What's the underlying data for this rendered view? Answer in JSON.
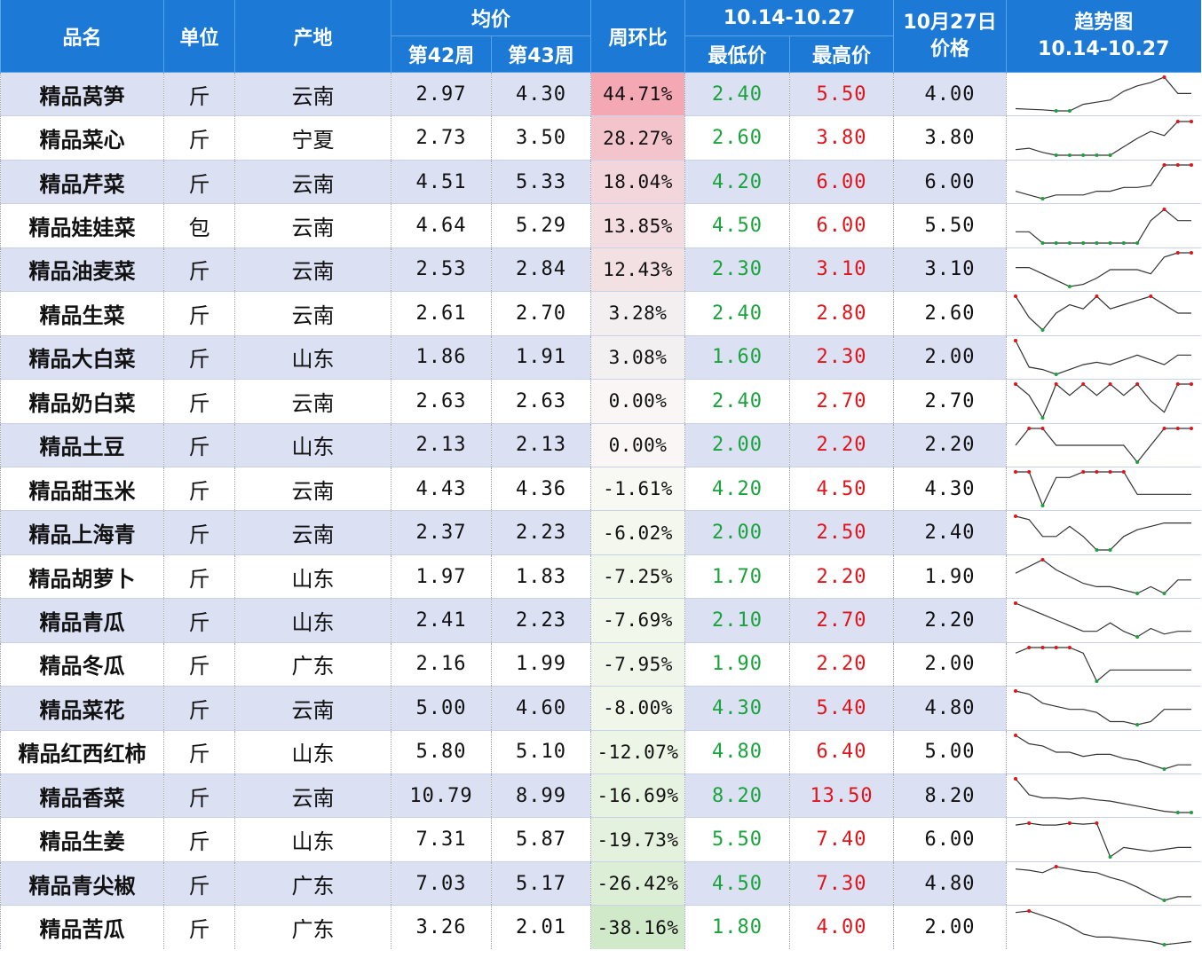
{
  "header": {
    "name": "品名",
    "unit": "单位",
    "origin": "产地",
    "avg": "均价",
    "w42": "第42周",
    "w43": "第43周",
    "wow": "周环比",
    "range": "10.14-10.27",
    "min": "最低价",
    "max": "最高价",
    "oct27_line1": "10月27日",
    "oct27_line2": "价格",
    "trend_line1": "趋势图",
    "trend_line2": "10.14-10.27"
  },
  "colors": {
    "header_bg": "#1c7ad6",
    "row_alt": "#dbe1f3",
    "low": "#1aa33c",
    "high": "#e0151b",
    "up_strong": "#f3a8b4",
    "down_strong": "#cfe9c9"
  },
  "rows": [
    {
      "name": "精品莴笋",
      "unit": "斤",
      "origin": "云南",
      "w42": "2.97",
      "w43": "4.30",
      "change": "44.71%",
      "change_val": 44.71,
      "min": "2.40",
      "max": "5.50",
      "oct27": "4.00",
      "trend": [
        2.6,
        2.55,
        2.5,
        2.4,
        2.4,
        3.0,
        3.2,
        3.4,
        4.2,
        4.7,
        5.0,
        5.5,
        4.0,
        4.0
      ]
    },
    {
      "name": "精品菜心",
      "unit": "斤",
      "origin": "宁夏",
      "w42": "2.73",
      "w43": "3.50",
      "change": "28.27%",
      "change_val": 28.27,
      "min": "2.60",
      "max": "3.80",
      "oct27": "3.80",
      "trend": [
        2.8,
        2.85,
        2.7,
        2.6,
        2.6,
        2.6,
        2.6,
        2.6,
        2.9,
        3.2,
        3.45,
        3.3,
        3.8,
        3.8
      ]
    },
    {
      "name": "精品芹菜",
      "unit": "斤",
      "origin": "云南",
      "w42": "4.51",
      "w43": "5.33",
      "change": "18.04%",
      "change_val": 18.04,
      "min": "4.20",
      "max": "6.00",
      "oct27": "6.00",
      "trend": [
        4.6,
        4.4,
        4.2,
        4.4,
        4.4,
        4.4,
        4.6,
        4.6,
        4.8,
        4.8,
        4.9,
        6.0,
        6.0,
        6.0
      ]
    },
    {
      "name": "精品娃娃菜",
      "unit": "包",
      "origin": "云南",
      "w42": "4.64",
      "w43": "5.29",
      "change": "13.85%",
      "change_val": 13.85,
      "min": "4.50",
      "max": "6.00",
      "oct27": "5.50",
      "trend": [
        5.0,
        5.0,
        4.5,
        4.5,
        4.5,
        4.5,
        4.5,
        4.5,
        4.5,
        4.5,
        5.5,
        6.0,
        5.5,
        5.5
      ]
    },
    {
      "name": "精品油麦菜",
      "unit": "斤",
      "origin": "云南",
      "w42": "2.53",
      "w43": "2.84",
      "change": "12.43%",
      "change_val": 12.43,
      "min": "2.30",
      "max": "3.10",
      "oct27": "3.10",
      "trend": [
        2.75,
        2.75,
        2.6,
        2.45,
        2.3,
        2.35,
        2.5,
        2.7,
        2.7,
        2.7,
        2.6,
        3.0,
        3.1,
        3.1
      ]
    },
    {
      "name": "精品生菜",
      "unit": "斤",
      "origin": "云南",
      "w42": "2.61",
      "w43": "2.70",
      "change": "3.28%",
      "change_val": 3.28,
      "min": "2.40",
      "max": "2.80",
      "oct27": "2.60",
      "trend": [
        2.8,
        2.55,
        2.4,
        2.6,
        2.7,
        2.65,
        2.8,
        2.65,
        2.7,
        2.75,
        2.8,
        2.7,
        2.6,
        2.6
      ]
    },
    {
      "name": "精品大白菜",
      "unit": "斤",
      "origin": "山东",
      "w42": "1.86",
      "w43": "1.91",
      "change": "3.08%",
      "change_val": 3.08,
      "min": "1.60",
      "max": "2.30",
      "oct27": "2.00",
      "trend": [
        2.3,
        1.75,
        1.7,
        1.6,
        1.7,
        1.8,
        1.85,
        1.8,
        1.9,
        2.0,
        1.9,
        1.8,
        2.0,
        2.0
      ]
    },
    {
      "name": "精品奶白菜",
      "unit": "斤",
      "origin": "云南",
      "w42": "2.63",
      "w43": "2.63",
      "change": "0.00%",
      "change_val": 0.0,
      "min": "2.40",
      "max": "2.70",
      "oct27": "2.70",
      "trend": [
        2.7,
        2.6,
        2.4,
        2.7,
        2.6,
        2.7,
        2.6,
        2.7,
        2.6,
        2.7,
        2.55,
        2.45,
        2.7,
        2.7
      ]
    },
    {
      "name": "精品土豆",
      "unit": "斤",
      "origin": "山东",
      "w42": "2.13",
      "w43": "2.13",
      "change": "0.00%",
      "change_val": 0.0,
      "min": "2.00",
      "max": "2.20",
      "oct27": "2.20",
      "trend": [
        2.1,
        2.2,
        2.2,
        2.1,
        2.1,
        2.1,
        2.1,
        2.1,
        2.1,
        2.0,
        2.1,
        2.2,
        2.2,
        2.2
      ]
    },
    {
      "name": "精品甜玉米",
      "unit": "斤",
      "origin": "云南",
      "w42": "4.43",
      "w43": "4.36",
      "change": "-1.61%",
      "change_val": -1.61,
      "min": "4.20",
      "max": "4.50",
      "oct27": "4.30",
      "trend": [
        4.5,
        4.5,
        4.2,
        4.45,
        4.45,
        4.5,
        4.5,
        4.5,
        4.5,
        4.3,
        4.3,
        4.3,
        4.3,
        4.3
      ]
    },
    {
      "name": "精品上海青",
      "unit": "斤",
      "origin": "云南",
      "w42": "2.37",
      "w43": "2.23",
      "change": "-6.02%",
      "change_val": -6.02,
      "min": "2.00",
      "max": "2.50",
      "oct27": "2.40",
      "trend": [
        2.5,
        2.45,
        2.2,
        2.2,
        2.35,
        2.2,
        2.0,
        2.0,
        2.2,
        2.3,
        2.35,
        2.4,
        2.4,
        2.4
      ]
    },
    {
      "name": "精品胡萝卜",
      "unit": "斤",
      "origin": "山东",
      "w42": "1.97",
      "w43": "1.83",
      "change": "-7.25%",
      "change_val": -7.25,
      "min": "1.70",
      "max": "2.20",
      "oct27": "1.90",
      "trend": [
        2.0,
        2.1,
        2.2,
        2.05,
        1.95,
        1.85,
        1.8,
        1.8,
        1.75,
        1.7,
        1.8,
        1.7,
        1.9,
        1.9
      ]
    },
    {
      "name": "精品青瓜",
      "unit": "斤",
      "origin": "山东",
      "w42": "2.41",
      "w43": "2.23",
      "change": "-7.69%",
      "change_val": -7.69,
      "min": "2.10",
      "max": "2.70",
      "oct27": "2.20",
      "trend": [
        2.7,
        2.6,
        2.5,
        2.4,
        2.3,
        2.2,
        2.2,
        2.35,
        2.2,
        2.1,
        2.25,
        2.15,
        2.2,
        2.2
      ]
    },
    {
      "name": "精品冬瓜",
      "unit": "斤",
      "origin": "广东",
      "w42": "2.16",
      "w43": "1.99",
      "change": "-7.95%",
      "change_val": -7.95,
      "min": "1.90",
      "max": "2.20",
      "oct27": "2.00",
      "trend": [
        2.15,
        2.2,
        2.2,
        2.2,
        2.2,
        2.15,
        1.9,
        2.0,
        2.0,
        2.0,
        2.0,
        2.0,
        2.0,
        2.0
      ]
    },
    {
      "name": "精品菜花",
      "unit": "斤",
      "origin": "云南",
      "w42": "5.00",
      "w43": "4.60",
      "change": "-8.00%",
      "change_val": -8.0,
      "min": "4.30",
      "max": "5.40",
      "oct27": "4.80",
      "trend": [
        5.4,
        5.3,
        5.0,
        4.9,
        4.8,
        4.8,
        4.7,
        4.4,
        4.4,
        4.3,
        4.4,
        4.8,
        4.8,
        4.8
      ]
    },
    {
      "name": "精品红西红柿",
      "unit": "斤",
      "origin": "山东",
      "w42": "5.80",
      "w43": "5.10",
      "change": "-12.07%",
      "change_val": -12.07,
      "min": "4.80",
      "max": "6.40",
      "oct27": "5.00",
      "trend": [
        6.4,
        6.0,
        5.9,
        5.6,
        5.6,
        5.4,
        5.5,
        5.5,
        5.3,
        5.2,
        5.0,
        4.8,
        5.0,
        5.0
      ]
    },
    {
      "name": "精品香菜",
      "unit": "斤",
      "origin": "云南",
      "w42": "10.79",
      "w43": "8.99",
      "change": "-16.69%",
      "change_val": -16.69,
      "min": "8.20",
      "max": "13.50",
      "oct27": "8.20",
      "trend": [
        13.5,
        11.0,
        10.5,
        10.5,
        10.3,
        10.5,
        10.2,
        10.0,
        9.6,
        9.2,
        8.8,
        8.4,
        8.2,
        8.2
      ]
    },
    {
      "name": "精品生姜",
      "unit": "斤",
      "origin": "山东",
      "w42": "7.31",
      "w43": "5.87",
      "change": "-19.73%",
      "change_val": -19.73,
      "min": "5.50",
      "max": "7.40",
      "oct27": "6.00",
      "trend": [
        7.2,
        7.3,
        7.2,
        7.2,
        7.3,
        7.25,
        7.3,
        5.5,
        6.0,
        5.9,
        5.8,
        5.9,
        6.0,
        6.0
      ]
    },
    {
      "name": "精品青尖椒",
      "unit": "斤",
      "origin": "广东",
      "w42": "7.03",
      "w43": "5.17",
      "change": "-26.42%",
      "change_val": -26.42,
      "min": "4.50",
      "max": "7.30",
      "oct27": "4.80",
      "trend": [
        7.1,
        7.0,
        6.8,
        7.3,
        7.1,
        6.9,
        6.8,
        6.4,
        6.1,
        5.6,
        5.0,
        4.5,
        4.8,
        4.8
      ]
    },
    {
      "name": "精品苦瓜",
      "unit": "斤",
      "origin": "广东",
      "w42": "3.26",
      "w43": "2.01",
      "change": "-38.16%",
      "change_val": -38.16,
      "min": "1.80",
      "max": "4.00",
      "oct27": "2.00",
      "trend": [
        3.9,
        4.0,
        3.7,
        3.4,
        3.0,
        2.5,
        2.3,
        2.3,
        2.2,
        2.1,
        2.0,
        1.8,
        1.9,
        2.0
      ]
    }
  ]
}
